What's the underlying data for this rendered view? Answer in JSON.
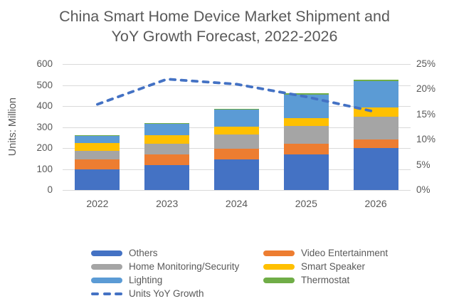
{
  "title": "China Smart Home Device Market Shipment and YoY Growth Forecast, 2022-2026",
  "axes": {
    "left": {
      "title": "Units: Million",
      "ticks": [
        "600",
        "500",
        "400",
        "300",
        "200",
        "100",
        "0"
      ],
      "range": [
        0,
        600
      ]
    },
    "right": {
      "ticks": [
        "25%",
        "20%",
        "15%",
        "10%",
        "5%",
        "0%"
      ],
      "range_percent": [
        0,
        25
      ]
    },
    "x": {
      "categories": [
        "2022",
        "2023",
        "2024",
        "2025",
        "2026"
      ]
    }
  },
  "chart_data": {
    "type": "bar",
    "subtype": "stacked-columns-with-dashed-line",
    "title": "China Smart Home Device Market Shipment and YoY Growth Forecast, 2022-2026",
    "ylabel": "Units: Million",
    "categories": [
      "2022",
      "2023",
      "2024",
      "2025",
      "2026"
    ],
    "series": [
      {
        "name": "Others",
        "color": "#4472C4",
        "values": [
          100,
          120,
          147,
          170,
          200
        ]
      },
      {
        "name": "Video Entertainment",
        "color": "#ED7D31",
        "values": [
          45,
          48,
          50,
          50,
          41
        ]
      },
      {
        "name": "Home Monitoring/Security",
        "color": "#A5A5A5",
        "values": [
          40,
          52,
          67,
          85,
          108
        ]
      },
      {
        "name": "Smart Speaker",
        "color": "#FFC000",
        "values": [
          40,
          41,
          37,
          37,
          45
        ]
      },
      {
        "name": "Lighting",
        "color": "#5B9BD5",
        "values": [
          34,
          55,
          81,
          114,
          124
        ]
      },
      {
        "name": "Thermostat",
        "color": "#70AD47",
        "values": [
          1,
          2,
          3,
          4,
          7
        ]
      }
    ],
    "stack_totals": [
      260,
      318,
      385,
      460,
      525
    ],
    "line_series": {
      "name": "Units YoY Growth",
      "color": "#4472C4",
      "style": "dashed",
      "values_percent": [
        17,
        22,
        21,
        18.5,
        15.5
      ]
    },
    "ylim": [
      0,
      600
    ],
    "y2lim_percent": [
      0,
      25
    ],
    "grid": true,
    "legend_position": "bottom"
  },
  "legend": {
    "columns": [
      [
        {
          "name": "Others",
          "color": "#4472C4",
          "type": "box"
        },
        {
          "name": "Home Monitoring/Security",
          "color": "#A5A5A5",
          "type": "box"
        },
        {
          "name": "Lighting",
          "color": "#5B9BD5",
          "type": "box"
        },
        {
          "name": "Units YoY Growth",
          "color": "#4472C4",
          "type": "dashed-line"
        }
      ],
      [
        {
          "name": "Video Entertainment",
          "color": "#ED7D31",
          "type": "box"
        },
        {
          "name": "Smart Speaker",
          "color": "#FFC000",
          "type": "box"
        },
        {
          "name": "Thermostat",
          "color": "#70AD47",
          "type": "box"
        }
      ]
    ]
  },
  "colors": {
    "text": "#595959",
    "grid": "#D9D9D9",
    "background": "#FFFFFF"
  }
}
